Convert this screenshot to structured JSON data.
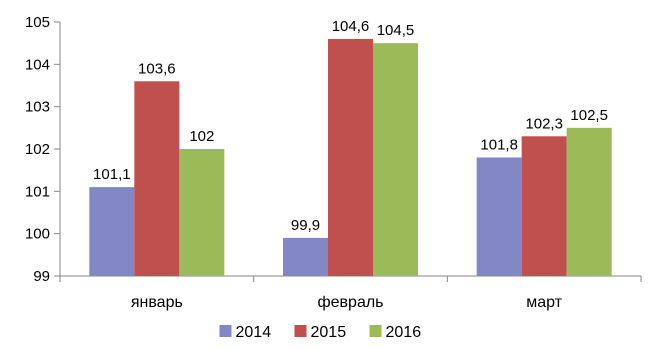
{
  "chart_data": {
    "type": "bar",
    "title": "",
    "xlabel": "",
    "ylabel": "",
    "categories": [
      "январь",
      "февраль",
      "март"
    ],
    "series": [
      {
        "name": "2014",
        "values": [
          101.1,
          99.9,
          101.8
        ],
        "labels": [
          "101,1",
          "99,9",
          "101,8"
        ],
        "color": "#8087C4"
      },
      {
        "name": "2015",
        "values": [
          103.6,
          104.6,
          102.3
        ],
        "labels": [
          "103,6",
          "104,6",
          "102,3"
        ],
        "color": "#C0504D"
      },
      {
        "name": "2016",
        "values": [
          102,
          104.5,
          102.5
        ],
        "labels": [
          "102",
          "104,5",
          "102,5"
        ],
        "color": "#9BBB59"
      }
    ],
    "ylim": [
      99,
      105
    ],
    "yticks": [
      99,
      100,
      101,
      102,
      103,
      104,
      105
    ],
    "ytick_labels": [
      "99",
      "100",
      "101",
      "102",
      "103",
      "104",
      "105"
    ],
    "grid": false,
    "legend_position": "bottom",
    "axis_color": "#868686"
  }
}
